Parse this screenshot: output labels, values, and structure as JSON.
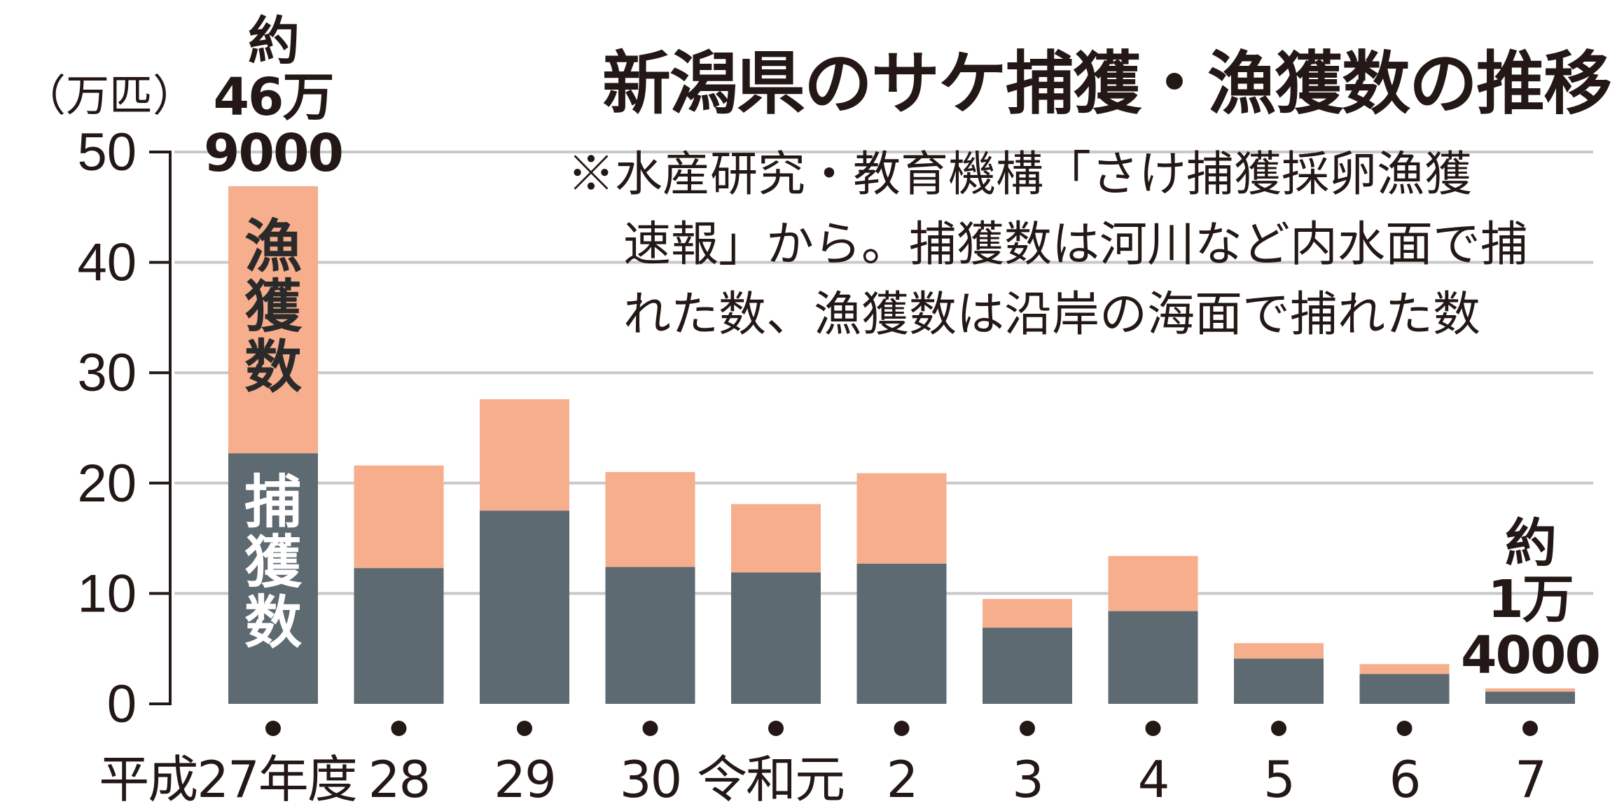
{
  "chart_data": {
    "type": "bar",
    "stacked": true,
    "title": "新潟県のサケ捕獲・漁獲数の推移",
    "note": [
      "※水産研究・教育機構「さけ捕獲採卵漁獲",
      "速報」から。捕獲数は河川など内水面で捕",
      "れた数、漁獲数は沿岸の海面で捕れた数"
    ],
    "unit_label": "（万匹）",
    "categories": [
      "平成27年度",
      "28",
      "29",
      "30",
      "令和元",
      "2",
      "3",
      "4",
      "5",
      "6",
      "7"
    ],
    "series": [
      {
        "name": "捕獲数",
        "color": "#5d6a71",
        "values": [
          22.7,
          12.3,
          17.5,
          12.4,
          11.9,
          12.7,
          6.9,
          8.4,
          4.1,
          2.7,
          1.1
        ]
      },
      {
        "name": "漁獲数",
        "color": "#f6ae8d",
        "values": [
          24.2,
          9.3,
          10.1,
          8.6,
          6.2,
          8.2,
          2.6,
          5.0,
          1.4,
          0.9,
          0.3
        ]
      }
    ],
    "yticks": [
      0,
      10,
      20,
      30,
      40,
      50
    ],
    "ylim": [
      0,
      50
    ],
    "grid": true,
    "annotations": [
      {
        "category_index": 0,
        "lines": [
          "約",
          "46万",
          "9000"
        ]
      },
      {
        "category_index": 10,
        "lines": [
          "約",
          "1万",
          "4000"
        ]
      }
    ]
  }
}
